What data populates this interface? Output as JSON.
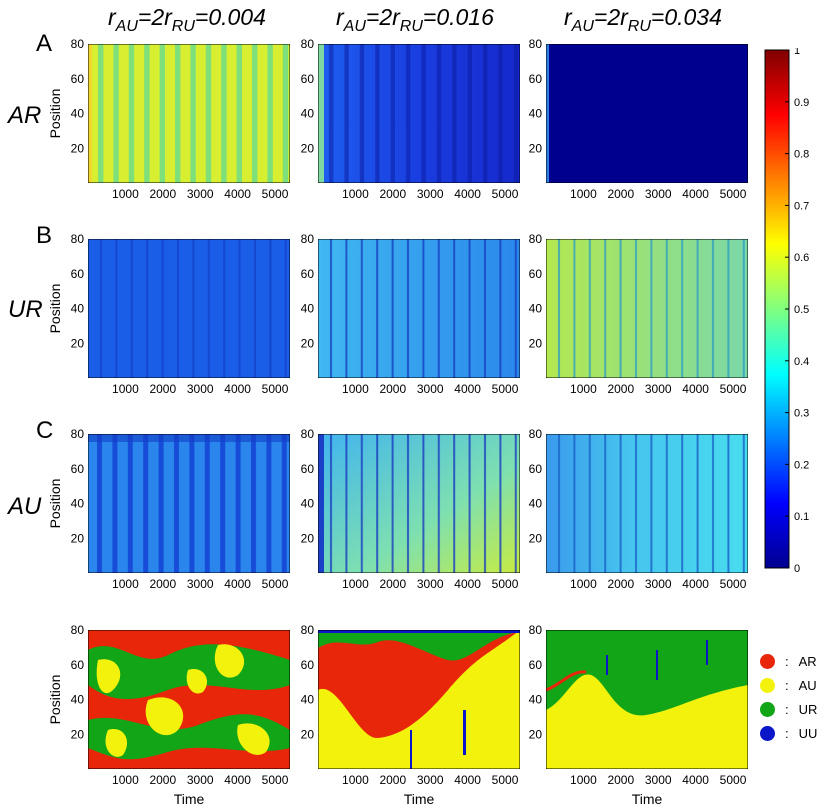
{
  "column_titles": [
    {
      "r": "r",
      "sub1": "AU",
      "mid": "=2r",
      "sub2": "RU",
      "value": "=0.004"
    },
    {
      "r": "r",
      "sub1": "AU",
      "mid": "=2r",
      "sub2": "RU",
      "value": "=0.016"
    },
    {
      "r": "r",
      "sub1": "AU",
      "mid": "=2r",
      "sub2": "RU",
      "value": "=0.034"
    }
  ],
  "row_letters": [
    "A",
    "B",
    "C"
  ],
  "row_labels": [
    "AR",
    "UR",
    "AU"
  ],
  "colorbar": {
    "min": 0,
    "max": 1,
    "ticks": [
      "0",
      "0.1",
      "0.2",
      "0.3",
      "0.4",
      "0.5",
      "0.6",
      "0.7",
      "0.8",
      "0.9",
      "1"
    ]
  },
  "state_legend": [
    {
      "label": "AR",
      "color": "#e8260a",
      "sep": ":"
    },
    {
      "label": "AU",
      "color": "#f2f20c",
      "sep": ":"
    },
    {
      "label": "UR",
      "color": "#11a517",
      "sep": ":"
    },
    {
      "label": "UU",
      "color": "#0a16c8",
      "sep": ":"
    }
  ],
  "chart_data": {
    "type": "heatmap",
    "xlabel": "Time",
    "ylabel": "Position",
    "xlim": [
      0,
      5400
    ],
    "ylim": [
      0,
      80
    ],
    "x_ticks": [
      "1000",
      "2000",
      "3000",
      "4000",
      "5000"
    ],
    "y_ticks": [
      "20",
      "40",
      "60",
      "80"
    ],
    "x_tick_values": [
      1000,
      2000,
      3000,
      4000,
      5000
    ],
    "y_tick_values": [
      20,
      40,
      60,
      80
    ],
    "colorbar_range": [
      0,
      1
    ],
    "heatmap_rows": [
      {
        "row": "AR",
        "panels": [
          {
            "r": 0.004,
            "approx_mean": 0.58,
            "pattern": "periodic vertical stripes (~400 time period)"
          },
          {
            "r": 0.016,
            "approx_mean": 0.15,
            "pattern": "decaying stripes, near 0.1 after t=3000"
          },
          {
            "r": 0.034,
            "approx_mean": 0.02,
            "pattern": "uniform near zero"
          }
        ]
      },
      {
        "row": "UR",
        "panels": [
          {
            "r": 0.004,
            "approx_mean": 0.17,
            "pattern": "near-uniform low values"
          },
          {
            "r": 0.016,
            "approx_mean": 0.28,
            "pattern": "stripes, ~0.35 early declining to ~0.22"
          },
          {
            "r": 0.034,
            "approx_mean": 0.5,
            "pattern": "stripes, ~0.55 early declining to ~0.45"
          }
        ]
      },
      {
        "row": "AU",
        "panels": [
          {
            "r": 0.004,
            "approx_mean": 0.2,
            "pattern": "periodic stripes ~0.15-0.25"
          },
          {
            "r": 0.016,
            "approx_mean": 0.4,
            "pattern": "increasing to ~0.55 at low positions late"
          },
          {
            "r": 0.034,
            "approx_mean": 0.33,
            "pattern": "~0.3 with lighter patch ~0.38 after t=2000"
          }
        ]
      }
    ],
    "state_maps": [
      {
        "r": 0.004,
        "dominant": "mixed AR/AU/UR patches, small UU"
      },
      {
        "r": 0.016,
        "dominant": "AU below boundary rising from ~20 to ~70; AR/UR mix above"
      },
      {
        "r": 0.034,
        "dominant": "UR above boundary at ~25-40; AU below"
      }
    ]
  }
}
